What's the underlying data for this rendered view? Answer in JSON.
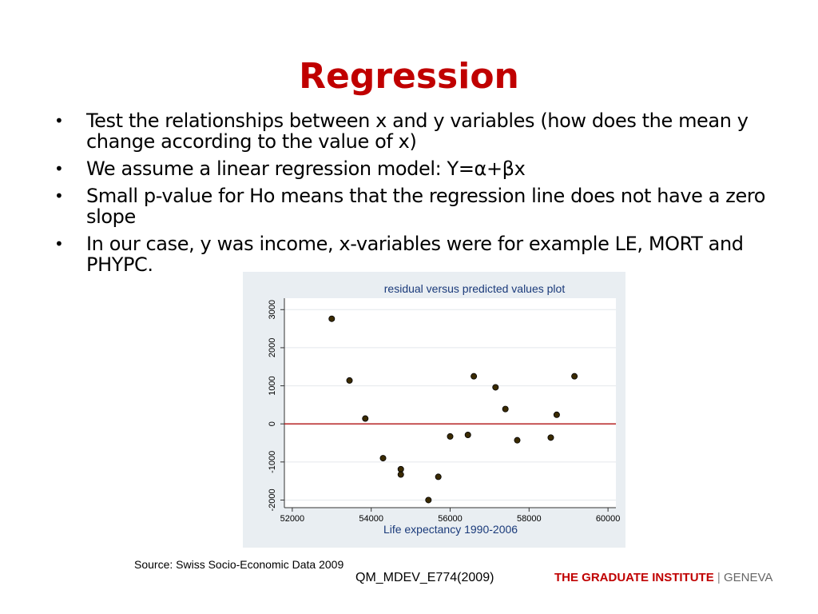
{
  "slide": {
    "title": "Regression",
    "bullets": [
      "Test the relationships between x and y variables (how does the mean y change according to the value of x)",
      "We assume a linear regression model: Y=α+βx",
      "Small p-value for Ho means that the regression line does not have a zero slope",
      "In our case, y was income, x-variables were for example LE, MORT and PHYPC."
    ],
    "source": "Source: Swiss Socio-Economic Data 2009",
    "footer_code": "QM_MDEV_E774(2009)",
    "logo_bold": "THE GRADUATE INSTITUTE",
    "logo_sep": "|",
    "logo_light": "GENEVA"
  },
  "colors": {
    "title": "#c00000",
    "zero_line": "#b01010",
    "chart_bg": "#e9eef2",
    "plot_bg": "#ffffff"
  },
  "chart_data": {
    "type": "scatter",
    "title": "residual versus predicted values plot",
    "xlabel": "Life expectancy 1990-2006",
    "ylabel": "",
    "xlim": [
      51800,
      60200
    ],
    "ylim": [
      -2200,
      3300
    ],
    "xticks": [
      52000,
      54000,
      56000,
      58000,
      60000
    ],
    "yticks": [
      -2000,
      -1000,
      0,
      1000,
      2000,
      3000
    ],
    "grid": "horizontal",
    "reference_line_y": 0,
    "points": [
      {
        "x": 53000,
        "y": 2760
      },
      {
        "x": 53450,
        "y": 1140
      },
      {
        "x": 53850,
        "y": 140
      },
      {
        "x": 54300,
        "y": -900
      },
      {
        "x": 54750,
        "y": -1190
      },
      {
        "x": 54750,
        "y": -1330
      },
      {
        "x": 55450,
        "y": -2000
      },
      {
        "x": 55700,
        "y": -1390
      },
      {
        "x": 56000,
        "y": -330
      },
      {
        "x": 56450,
        "y": -290
      },
      {
        "x": 56600,
        "y": 1250
      },
      {
        "x": 57150,
        "y": 960
      },
      {
        "x": 57400,
        "y": 390
      },
      {
        "x": 57700,
        "y": -430
      },
      {
        "x": 58550,
        "y": -360
      },
      {
        "x": 58700,
        "y": 240
      },
      {
        "x": 59150,
        "y": 1250
      }
    ]
  }
}
